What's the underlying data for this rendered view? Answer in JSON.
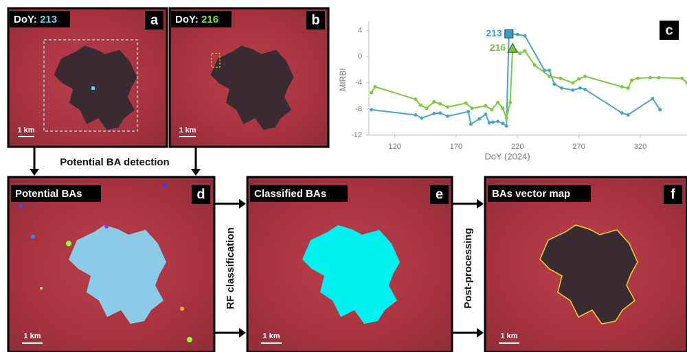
{
  "panels": [
    {
      "letter": "a",
      "tag_prefix": "DoY:",
      "tag_value": "213",
      "tag_color": "#6fd0ee",
      "scale": "1 km"
    },
    {
      "letter": "b",
      "tag_prefix": "DoY:",
      "tag_value": "216",
      "tag_color": "#8fe03a",
      "scale": "1 km"
    },
    {
      "letter": "d",
      "title": "Potential BAs",
      "scale": "1 km"
    },
    {
      "letter": "e",
      "title": "Classified BAs",
      "scale": "1 km"
    },
    {
      "letter": "f",
      "title": "BAs vector map",
      "scale": "1 km"
    }
  ],
  "steps": [
    "Potential BA detection",
    "RF classification",
    "Post-processing"
  ],
  "chart_letter": "c",
  "chart_data": {
    "type": "line",
    "xlabel": "DoY (2024)",
    "ylabel": "MIRBI",
    "xlim": [
      99,
      358
    ],
    "xticks": [
      120,
      170,
      220,
      270,
      320
    ],
    "ylim": [
      -12,
      5
    ],
    "yticks": [
      -12,
      -8,
      -4,
      0,
      4
    ],
    "series": [
      {
        "color": "#4aa3c8",
        "x": [
          101,
          137,
          142,
          152,
          157,
          163,
          180,
          182,
          189,
          194,
          197,
          200,
          204,
          208,
          211,
          213,
          220,
          226,
          242,
          246,
          250,
          256,
          265,
          271,
          275,
          305,
          310,
          330,
          336
        ],
        "values": [
          -8.1,
          -8.9,
          -9.4,
          -8.7,
          -8.6,
          -9.1,
          -8.4,
          -10.3,
          -9.5,
          -8.8,
          -10.1,
          -10.0,
          -9.9,
          -10.2,
          -10.6,
          3.5,
          3.4,
          3.2,
          -2.1,
          -2.1,
          -4.2,
          -4.8,
          -5.1,
          -4.8,
          -5.0,
          -8.6,
          -8.9,
          -6.4,
          -8.1
        ]
      },
      {
        "color": "#7cc93a",
        "x": [
          101,
          104,
          137,
          141,
          146,
          152,
          157,
          163,
          178,
          183,
          194,
          199,
          204,
          208,
          211,
          214,
          216,
          222,
          226,
          234,
          246,
          255,
          265,
          270,
          275,
          305,
          310,
          313,
          318,
          328,
          335,
          354,
          358
        ],
        "values": [
          -5.5,
          -4.6,
          -6.5,
          -7.4,
          -7.9,
          -6.9,
          -7.2,
          -7.7,
          -7.1,
          -7.9,
          -7.5,
          -8.1,
          -7.0,
          -7.9,
          -9.4,
          -7.0,
          1.3,
          0.5,
          0.9,
          -1.3,
          -3.0,
          -3.3,
          -4.0,
          -3.4,
          -3.0,
          -4.6,
          -4.8,
          -3.6,
          -3.3,
          -3.2,
          -3.2,
          -3.3,
          -4.0
        ]
      }
    ],
    "annotations": [
      {
        "text": "213",
        "x": 213,
        "y": 3.5,
        "marker": "square",
        "color": "#3e9cc4"
      },
      {
        "text": "216",
        "x": 216,
        "y": 1.3,
        "marker": "triangle",
        "color": "#79c23a"
      }
    ]
  }
}
